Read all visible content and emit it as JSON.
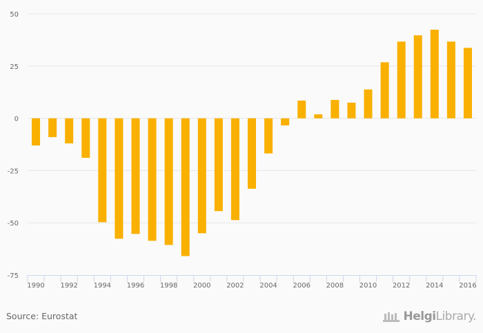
{
  "chart_data": {
    "type": "bar",
    "title": "",
    "xlabel": "",
    "ylabel": "",
    "ylim": [
      -75,
      50
    ],
    "yticks": [
      "50",
      "25",
      "0",
      "-25",
      "-50",
      "-75"
    ],
    "ytick_values": [
      50,
      25,
      0,
      -25,
      -50,
      -75
    ],
    "grid": true,
    "categories": [
      "1990",
      "1991",
      "1992",
      "1993",
      "1994",
      "1995",
      "1996",
      "1997",
      "1998",
      "1999",
      "2000",
      "2001",
      "2002",
      "2003",
      "2004",
      "2005",
      "2006",
      "2007",
      "2008",
      "2009",
      "2010",
      "2011",
      "2012",
      "2013",
      "2014",
      "2015",
      "2016"
    ],
    "xtick_labels": [
      "1990",
      "1992",
      "1994",
      "1996",
      "1998",
      "2000",
      "2002",
      "2004",
      "2006",
      "2008",
      "2010",
      "2012",
      "2014",
      "2016"
    ],
    "values": [
      -13.0,
      -9.0,
      -12.0,
      -18.9,
      -49.7,
      -57.6,
      -55.3,
      -58.6,
      -60.6,
      -65.9,
      -55.0,
      -44.4,
      -48.7,
      -33.7,
      -16.8,
      -3.4,
      8.5,
      1.9,
      8.8,
      7.5,
      13.8,
      26.8,
      36.7,
      39.7,
      42.4,
      36.7,
      33.7
    ],
    "bar_color": "#f9b000"
  },
  "footer": {
    "source": "Source: Eurostat",
    "logo_text_bold": "Helgi",
    "logo_text": "Library."
  }
}
